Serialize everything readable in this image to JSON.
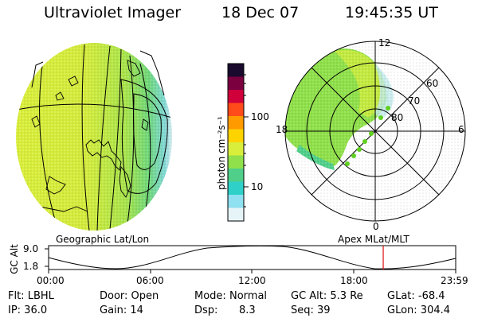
{
  "header": {
    "instrument": "Ultraviolet Imager",
    "date": "18 Dec 07",
    "time": "19:45:35 UT"
  },
  "colorbar": {
    "label": "photon cm⁻²s⁻¹",
    "ticks": [
      "100",
      "10"
    ],
    "colors": [
      "#1a0a2e",
      "#7a0040",
      "#d0003a",
      "#ff4a1a",
      "#ff9a00",
      "#ffd300",
      "#d9ee3a",
      "#8fe04a",
      "#4fcf8a",
      "#2fd0c8",
      "#8fe0f0",
      "#e6f4f8"
    ]
  },
  "left_map": {
    "caption": "Geographic Lat/Lon"
  },
  "right_map": {
    "caption": "Apex MLat/MLT",
    "mlt_labels": [
      "12",
      "18",
      "6",
      "0"
    ],
    "mlat_labels": [
      "60",
      "70",
      "80"
    ]
  },
  "timeline": {
    "ylabel": "GC Alt",
    "y_ticks": [
      "9.0",
      "1.8"
    ],
    "x_ticks": [
      "00:00",
      "06:00",
      "12:00",
      "18:00",
      "23:59"
    ],
    "current_time_fraction": 0.822
  },
  "info": {
    "row1": {
      "filter": "Flt: LBHL",
      "door": "Door: Open",
      "mode_label": "Mode:",
      "mode_value": "Normal",
      "gc_alt": "GC Alt: 5.3 Re",
      "glat": "GLat: -68.4"
    },
    "row2": {
      "ip": "IP: 36.0",
      "gain": "Gain: 14",
      "dsp_label": "Dsp:",
      "dsp_value": "8.3",
      "seq": "Seq: 39",
      "glon": "GLon: 304.4"
    }
  },
  "colors": {
    "foreground": "#000000",
    "time_marker": "#e01010",
    "aurora_green": "#8fe04a",
    "aurora_yellow": "#d9ee3a"
  }
}
